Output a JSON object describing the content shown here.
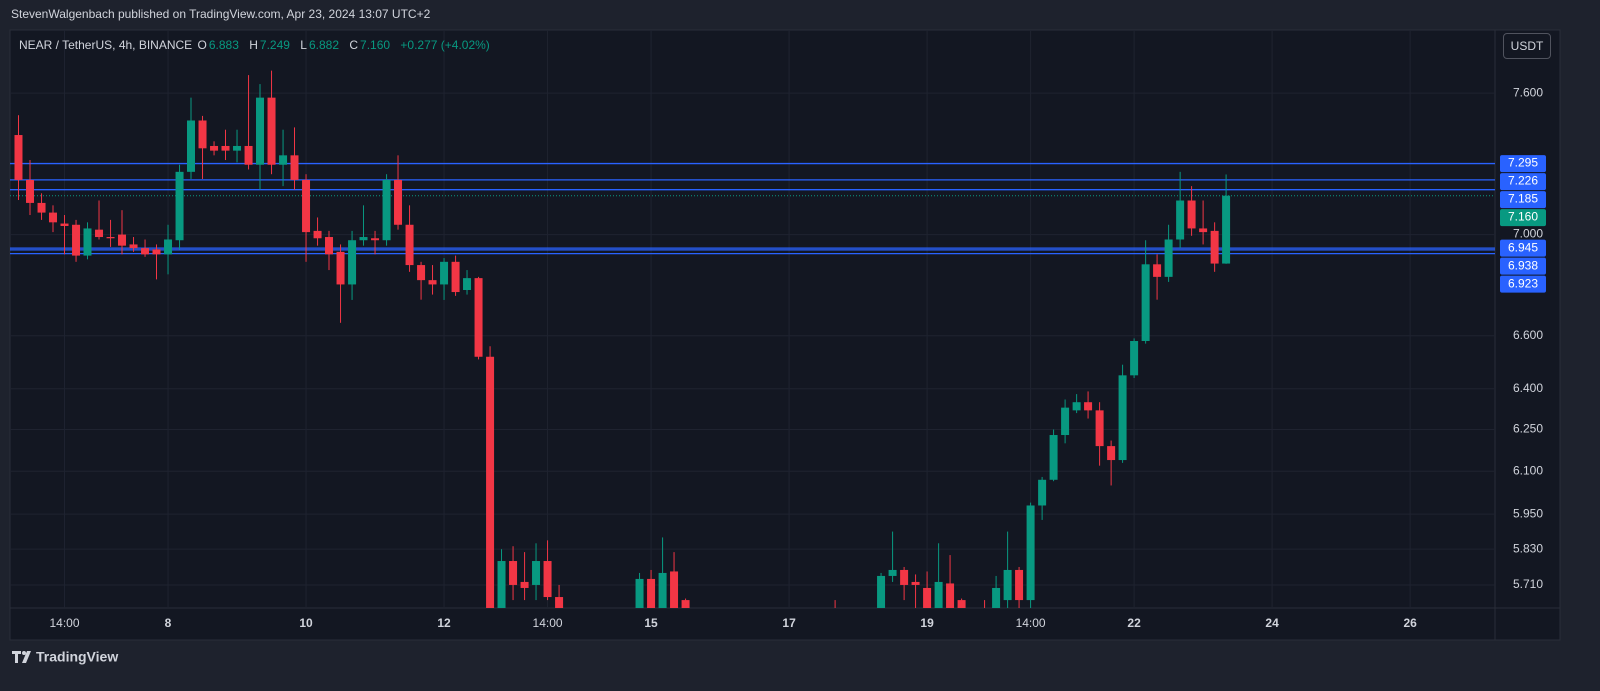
{
  "header": {
    "publisher": "StevenWalgenbach published on TradingView.com, Apr 23, 2024 13:07 UTC+2"
  },
  "footer": {
    "brand": "TradingView"
  },
  "chart_data": {
    "type": "candlestick",
    "currency": "USDT",
    "legend": {
      "symbol": "NEAR / TetherUS, 4h, BINANCE",
      "open_label": "O",
      "open": "6.883",
      "high_label": "H",
      "high": "7.249",
      "low_label": "L",
      "low": "6.882",
      "close_label": "C",
      "close": "7.160",
      "change": "+0.277 (+4.02%)"
    },
    "up_color": "#089981",
    "down_color": "#f23645",
    "log_scale": true,
    "grid": true,
    "xlim": [
      5.71,
      27.23
    ],
    "xticks": [
      {
        "value": 6.5,
        "label": "14:00"
      },
      8,
      10,
      12,
      {
        "value": 13.5,
        "label": "14:00"
      },
      15,
      17,
      19,
      {
        "value": 20.5,
        "label": "14:00"
      },
      22,
      24,
      26
    ],
    "ylim": [
      5.634,
      7.884
    ],
    "yticks": [
      {
        "value": 7.6,
        "label": "7.600"
      },
      {
        "value": 7.0,
        "label": "7.000"
      },
      {
        "value": 6.6,
        "label": "6.600"
      },
      {
        "value": 6.4,
        "label": "6.400"
      },
      {
        "value": 6.25,
        "label": "6.250"
      },
      {
        "value": 6.1,
        "label": "6.100"
      },
      {
        "value": 5.95,
        "label": "5.950"
      },
      {
        "value": 5.83,
        "label": "5.830"
      },
      {
        "value": 5.71,
        "label": "5.710"
      }
    ],
    "levels": [
      7.295,
      7.226,
      7.185,
      6.945,
      6.938,
      6.923
    ],
    "level_color": "#2962ff",
    "last_price": {
      "value": 7.16,
      "label": "7.160"
    },
    "x": [
      5.833,
      6,
      6.167,
      6.333,
      6.5,
      6.667,
      6.833,
      7,
      7.167,
      7.333,
      7.5,
      7.667,
      7.833,
      8,
      8.167,
      8.333,
      8.5,
      8.667,
      8.833,
      9,
      9.167,
      9.333,
      9.5,
      9.667,
      9.833,
      10,
      10.167,
      10.333,
      10.5,
      10.667,
      10.833,
      11,
      11.167,
      11.333,
      11.5,
      11.667,
      11.833,
      12,
      12.167,
      12.333,
      12.5,
      12.667,
      12.833,
      13,
      13.167,
      13.333,
      13.5,
      13.667,
      14.833,
      15,
      15.167,
      15.333,
      15.5,
      17.667,
      18.333,
      18.5,
      18.667,
      18.833,
      19,
      19.167,
      19.333,
      19.5,
      19.833,
      20,
      20.167,
      20.333,
      20.5,
      20.667,
      20.833,
      21,
      21.167,
      21.333,
      21.5,
      21.667,
      21.833,
      22,
      22.167,
      22.333,
      22.5,
      22.667,
      22.833,
      23,
      23.167,
      23.333
    ],
    "open": [
      7.417,
      7.226,
      7.13,
      7.09,
      7.045,
      7.04,
      6.915,
      7.02,
      6.99,
      7.0,
      6.96,
      6.945,
      6.94,
      6.92,
      6.977,
      7.26,
      7.48,
      7.37,
      7.37,
      7.35,
      7.37,
      7.29,
      7.58,
      7.29,
      7.33,
      7.226,
      7.015,
      6.99,
      6.93,
      6.8,
      6.977,
      6.985,
      6.977,
      7.226,
      7.04,
      6.877,
      6.817,
      6.8,
      6.89,
      6.778,
      6.825,
      6.52,
      5.6,
      5.79,
      5.72,
      5.71,
      5.79,
      5.67,
      5.63,
      5.73,
      5.62,
      5.755,
      5.66,
      5.62,
      5.62,
      5.74,
      5.76,
      5.72,
      5.7,
      5.63,
      5.715,
      5.66,
      5.63,
      5.62,
      5.66,
      5.76,
      5.66,
      5.98,
      6.07,
      6.23,
      6.32,
      6.35,
      6.32,
      6.19,
      6.14,
      6.45,
      6.58,
      6.88,
      6.83,
      6.98,
      7.14,
      7.025,
      7.015,
      6.883
    ],
    "high": [
      7.503,
      7.31,
      7.17,
      7.12,
      7.08,
      7.06,
      7.05,
      7.14,
      7.06,
      7.1,
      6.99,
      6.98,
      6.96,
      7.04,
      7.29,
      7.58,
      7.5,
      7.39,
      7.44,
      7.44,
      7.68,
      7.64,
      7.7,
      7.44,
      7.45,
      7.25,
      7.07,
      7.015,
      6.96,
      7.015,
      7.12,
      7.015,
      7.25,
      7.33,
      7.12,
      6.89,
      6.877,
      6.905,
      6.915,
      6.857,
      6.83,
      6.56,
      5.83,
      5.84,
      5.82,
      5.85,
      5.86,
      5.71,
      5.75,
      5.76,
      5.87,
      5.82,
      5.665,
      5.66,
      5.75,
      5.89,
      5.77,
      5.745,
      5.755,
      5.85,
      5.81,
      5.665,
      5.66,
      5.74,
      5.89,
      5.77,
      5.99,
      6.08,
      6.25,
      6.36,
      6.38,
      6.39,
      6.35,
      6.21,
      6.49,
      6.59,
      6.977,
      6.92,
      7.04,
      7.26,
      7.2,
      7.14,
      7.05,
      7.249
    ],
    "low": [
      7.142,
      7.08,
      7.06,
      7.01,
      6.92,
      6.89,
      6.9,
      6.98,
      6.95,
      6.92,
      6.93,
      6.91,
      6.82,
      6.84,
      6.94,
      7.23,
      7.23,
      7.33,
      7.31,
      7.3,
      7.27,
      7.185,
      7.25,
      7.2,
      7.185,
      6.89,
      6.955,
      6.857,
      6.65,
      6.739,
      6.955,
      6.92,
      6.955,
      7.02,
      6.85,
      6.74,
      6.76,
      6.739,
      6.755,
      6.76,
      6.51,
      5.55,
      5.58,
      5.66,
      5.66,
      5.66,
      5.66,
      5.58,
      5.6,
      5.58,
      5.6,
      5.58,
      5.58,
      5.58,
      5.6,
      5.72,
      5.66,
      5.62,
      5.6,
      5.6,
      5.6,
      5.6,
      5.58,
      5.58,
      5.62,
      5.63,
      5.63,
      5.93,
      6.065,
      6.2,
      6.31,
      6.29,
      6.12,
      6.05,
      6.13,
      6.44,
      6.57,
      6.74,
      6.81,
      6.945,
      6.995,
      6.96,
      6.85,
      6.882
    ],
    "close": [
      7.226,
      7.13,
      7.09,
      7.05,
      7.035,
      6.915,
      7.025,
      6.99,
      6.985,
      6.955,
      6.945,
      6.92,
      6.92,
      6.98,
      7.26,
      7.48,
      7.36,
      7.35,
      7.35,
      7.37,
      7.29,
      7.58,
      7.29,
      7.33,
      7.226,
      7.01,
      6.985,
      6.92,
      6.8,
      6.977,
      6.99,
      6.977,
      7.226,
      7.04,
      6.877,
      6.817,
      6.8,
      6.89,
      6.77,
      6.825,
      6.52,
      5.58,
      5.79,
      5.71,
      5.7,
      5.79,
      5.67,
      5.62,
      5.73,
      5.62,
      5.75,
      5.62,
      5.62,
      5.6,
      5.74,
      5.76,
      5.71,
      5.71,
      5.63,
      5.72,
      5.63,
      5.63,
      5.62,
      5.7,
      5.76,
      5.66,
      5.98,
      6.07,
      6.23,
      6.33,
      6.35,
      6.32,
      6.19,
      6.14,
      6.45,
      6.58,
      6.88,
      6.83,
      6.98,
      7.14,
      7.025,
      7.01,
      6.883,
      7.16
    ]
  }
}
